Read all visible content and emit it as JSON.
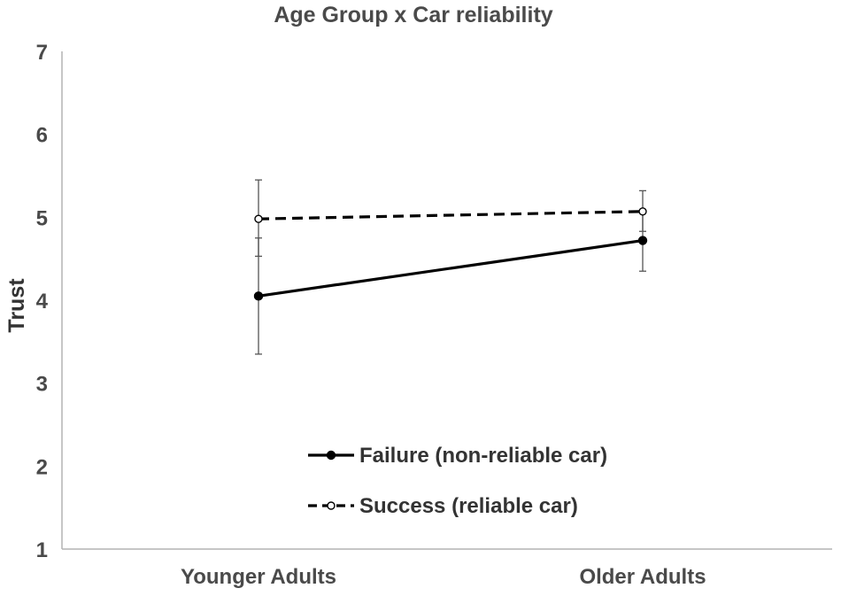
{
  "chart_data": {
    "type": "line",
    "title": "Age Group x Car reliability",
    "xlabel": "",
    "ylabel": "Trust",
    "categories": [
      "Younger Adults",
      "Older Adults"
    ],
    "ylim": [
      1,
      7
    ],
    "yticks": [
      1,
      2,
      3,
      4,
      5,
      6,
      7
    ],
    "grid": false,
    "legend_position": "bottom-center (inside plot)",
    "series": [
      {
        "name": "Failure (non-reliable car)",
        "style": "solid",
        "marker": "filled-circle",
        "color": "#000000",
        "values": [
          4.05,
          4.72
        ],
        "error": [
          [
            3.35,
            4.75
          ],
          [
            4.35,
            5.08
          ]
        ]
      },
      {
        "name": "Success (reliable car)",
        "style": "dashed",
        "marker": "open-circle",
        "color": "#000000",
        "values": [
          4.98,
          5.07
        ],
        "error": [
          [
            4.53,
            5.45
          ],
          [
            4.83,
            5.32
          ]
        ]
      }
    ]
  }
}
